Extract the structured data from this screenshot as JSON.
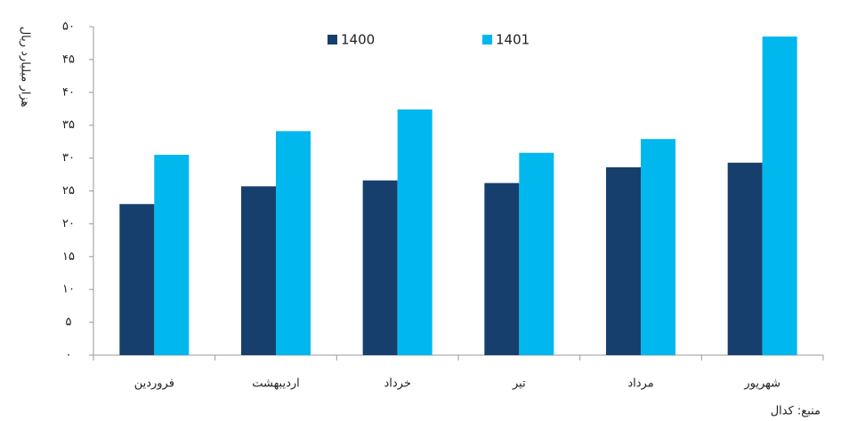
{
  "chart_data": {
    "type": "bar",
    "y_label": "هزار میلیارد ریال",
    "source": "منبع: کدال",
    "categories": [
      "فروردین",
      "اردیبهشت",
      "خرداد",
      "تیر",
      "مرداد",
      "شهریور"
    ],
    "series": [
      {
        "name": "1400",
        "color": "#163f6e",
        "values": [
          23.0,
          25.7,
          26.6,
          26.2,
          28.6,
          29.3
        ]
      },
      {
        "name": "1401",
        "color": "#00b7ee",
        "values": [
          30.5,
          34.1,
          37.4,
          30.8,
          32.9,
          48.5
        ]
      }
    ],
    "ylim": [
      0,
      50
    ],
    "yticks": [
      {
        "value": 0,
        "label": "۰"
      },
      {
        "value": 5,
        "label": "۵"
      },
      {
        "value": 10,
        "label": "۱۰"
      },
      {
        "value": 15,
        "label": "۱۵"
      },
      {
        "value": 20,
        "label": "۲۰"
      },
      {
        "value": 25,
        "label": "۲۵"
      },
      {
        "value": 30,
        "label": "۳۰"
      },
      {
        "value": 35,
        "label": "۳۵"
      },
      {
        "value": 40,
        "label": "۴۰"
      },
      {
        "value": 45,
        "label": "۴۵"
      },
      {
        "value": 50,
        "label": "۵۰"
      }
    ],
    "legend": "top"
  }
}
